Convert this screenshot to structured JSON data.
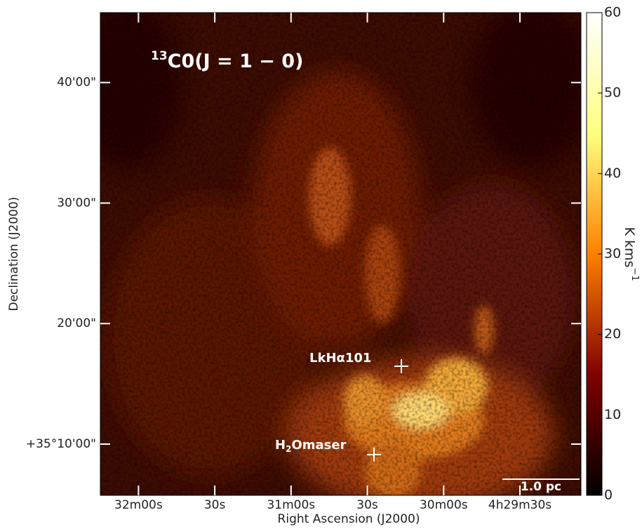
{
  "chart_data": {
    "type": "image",
    "title": {
      "superscript": "13",
      "text": "C0(J = 1 − 0)"
    },
    "x_label": "Right Ascension (J2000)",
    "y_label": "Declination (J2000)",
    "xlim": [
      16335,
      16146
    ],
    "xticks": [
      {
        "value": 16320,
        "label": "32m00s"
      },
      {
        "value": 16290,
        "label": "30s"
      },
      {
        "value": 16260,
        "label": "31m00s"
      },
      {
        "value": 16230,
        "label": "30s"
      },
      {
        "value": 16200,
        "label": "30m00s"
      },
      {
        "value": 16170,
        "label": "4h29m30s"
      }
    ],
    "ylim": [
      5.75,
      45.8
    ],
    "yticks": [
      {
        "value": 10,
        "label": "+35°10'00\""
      },
      {
        "value": 20,
        "label": "20'00\""
      },
      {
        "value": 30,
        "label": "30'00\""
      },
      {
        "value": 40,
        "label": "40'00\""
      }
    ],
    "colormap": "afmhot",
    "clim": [
      0,
      60
    ],
    "cticks": [
      0,
      10,
      20,
      30,
      40,
      50,
      60
    ],
    "colorbar_label": {
      "text": "K kms",
      "superscript": "−1"
    },
    "annotations": [
      {
        "parts": [
          "LkHα101"
        ]
      },
      {
        "parts": [
          "H",
          "2",
          "Omaser"
        ]
      }
    ],
    "scale_bar": "1.0 pc"
  }
}
